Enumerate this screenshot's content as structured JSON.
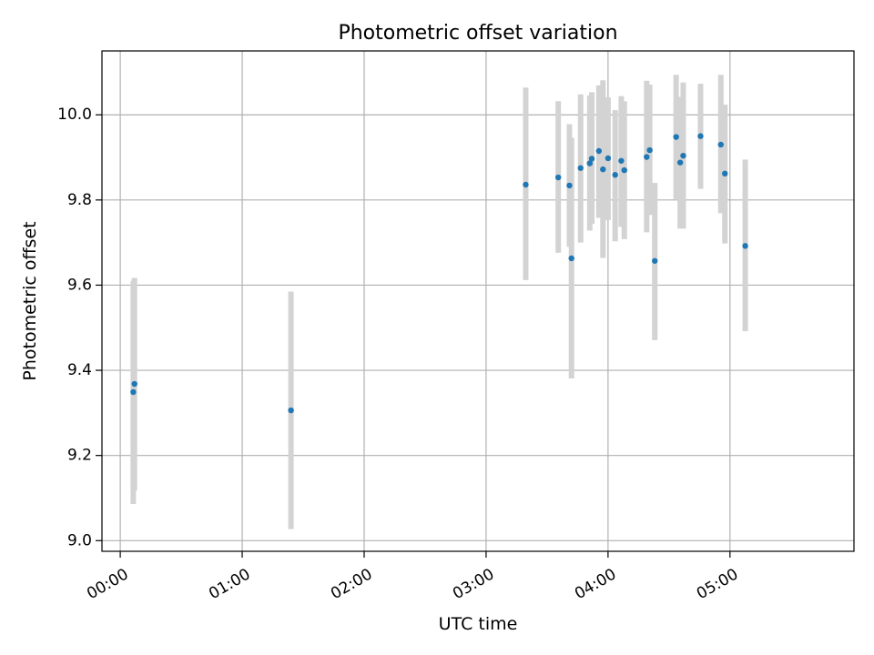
{
  "chart_data": {
    "type": "scatter",
    "title": "Photometric offset variation",
    "xlabel": "UTC time",
    "ylabel": "Photometric offset",
    "grid": true,
    "x_unit": "minutes since 00:00 UTC",
    "xlim": [
      -9,
      361
    ],
    "ylim": [
      8.975,
      10.15
    ],
    "x_ticks": [
      {
        "value": 0,
        "label": "00:00"
      },
      {
        "value": 60,
        "label": "01:00"
      },
      {
        "value": 120,
        "label": "02:00"
      },
      {
        "value": 180,
        "label": "03:00"
      },
      {
        "value": 240,
        "label": "04:00"
      },
      {
        "value": 300,
        "label": "05:00"
      }
    ],
    "y_ticks": [
      {
        "value": 9.0,
        "label": "9.0"
      },
      {
        "value": 9.2,
        "label": "9.2"
      },
      {
        "value": 9.4,
        "label": "9.4"
      },
      {
        "value": 9.6,
        "label": "9.6"
      },
      {
        "value": 9.8,
        "label": "9.8"
      },
      {
        "value": 10.0,
        "label": "10.0"
      }
    ],
    "colors": {
      "points": "#1f77b4",
      "errorbars": "#d3d3d3",
      "grid": "#b0b0b0"
    },
    "points": [
      {
        "x": 6.4,
        "y": 9.349,
        "ylo": 9.086,
        "yhi": 9.61
      },
      {
        "x": 7.0,
        "y": 9.368,
        "ylo": 9.118,
        "yhi": 9.617
      },
      {
        "x": 84.0,
        "y": 9.306,
        "ylo": 9.027,
        "yhi": 9.585
      },
      {
        "x": 199.5,
        "y": 9.836,
        "ylo": 9.612,
        "yhi": 10.064
      },
      {
        "x": 215.5,
        "y": 9.853,
        "ylo": 9.676,
        "yhi": 10.032
      },
      {
        "x": 221.0,
        "y": 9.834,
        "ylo": 9.69,
        "yhi": 9.978
      },
      {
        "x": 222.0,
        "y": 9.663,
        "ylo": 9.381,
        "yhi": 9.946
      },
      {
        "x": 226.5,
        "y": 9.875,
        "ylo": 9.7,
        "yhi": 10.048
      },
      {
        "x": 231.0,
        "y": 9.886,
        "ylo": 9.728,
        "yhi": 10.045
      },
      {
        "x": 232.0,
        "y": 9.897,
        "ylo": 9.744,
        "yhi": 10.053
      },
      {
        "x": 235.5,
        "y": 9.915,
        "ylo": 9.758,
        "yhi": 10.069
      },
      {
        "x": 237.5,
        "y": 9.872,
        "ylo": 9.664,
        "yhi": 10.081
      },
      {
        "x": 240.0,
        "y": 9.898,
        "ylo": 9.753,
        "yhi": 10.041
      },
      {
        "x": 243.5,
        "y": 9.859,
        "ylo": 9.703,
        "yhi": 10.011
      },
      {
        "x": 246.5,
        "y": 9.892,
        "ylo": 9.737,
        "yhi": 10.044
      },
      {
        "x": 248.0,
        "y": 9.87,
        "ylo": 9.708,
        "yhi": 10.032
      },
      {
        "x": 259.0,
        "y": 9.901,
        "ylo": 9.724,
        "yhi": 10.08
      },
      {
        "x": 260.5,
        "y": 9.917,
        "ylo": 9.765,
        "yhi": 10.071
      },
      {
        "x": 263.0,
        "y": 9.657,
        "ylo": 9.471,
        "yhi": 9.84
      },
      {
        "x": 273.5,
        "y": 9.948,
        "ylo": 9.802,
        "yhi": 10.094
      },
      {
        "x": 275.5,
        "y": 9.888,
        "ylo": 9.733,
        "yhi": 10.042
      },
      {
        "x": 277.0,
        "y": 9.904,
        "ylo": 9.733,
        "yhi": 10.076
      },
      {
        "x": 285.5,
        "y": 9.95,
        "ylo": 9.826,
        "yhi": 10.073
      },
      {
        "x": 295.5,
        "y": 9.93,
        "ylo": 9.769,
        "yhi": 10.094
      },
      {
        "x": 297.5,
        "y": 9.862,
        "ylo": 9.698,
        "yhi": 10.024
      },
      {
        "x": 307.5,
        "y": 9.692,
        "ylo": 9.492,
        "yhi": 9.895
      }
    ]
  }
}
